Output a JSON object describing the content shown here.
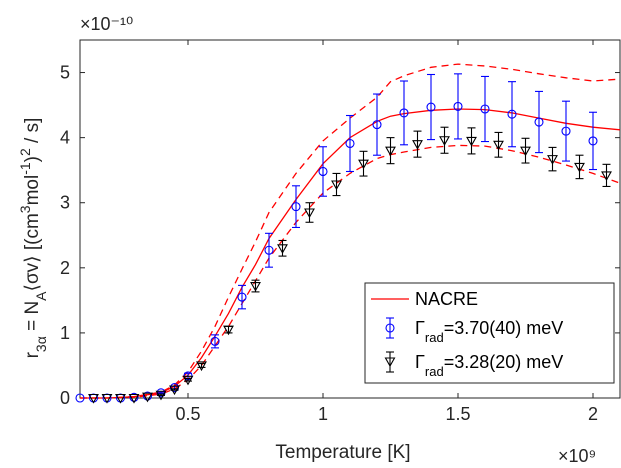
{
  "chart_data": {
    "type": "line",
    "xlabel": "Temperature [K]",
    "x_multiplier": "×10⁹",
    "y_multiplier": "×10⁻¹⁰",
    "xlim": [
      0.1,
      2.1
    ],
    "ylim": [
      0,
      5.5
    ],
    "x_ticks": [
      0.5,
      1,
      1.5,
      2
    ],
    "x_tick_labels": [
      "0.5",
      "1",
      "1.5",
      "2"
    ],
    "y_ticks": [
      0,
      1,
      2,
      3,
      4,
      5
    ],
    "y_tick_labels": [
      "0",
      "1",
      "2",
      "3",
      "4",
      "5"
    ],
    "grid": false,
    "legend_position": "bottom-right",
    "colors": {
      "nacre": "#ff0000",
      "series1": "#0000ff",
      "series2": "#000000",
      "axis": "#262626"
    },
    "series": [
      {
        "name": "NACRE",
        "style": "solid",
        "x": [
          0.1,
          0.2,
          0.3,
          0.4,
          0.45,
          0.5,
          0.55,
          0.6,
          0.65,
          0.7,
          0.75,
          0.8,
          0.9,
          1.0,
          1.1,
          1.2,
          1.25,
          1.3,
          1.4,
          1.5,
          1.6,
          1.7,
          1.8,
          1.9,
          2.0,
          2.1
        ],
        "y": [
          0.0,
          0.0,
          0.02,
          0.08,
          0.18,
          0.35,
          0.62,
          0.95,
          1.3,
          1.7,
          2.05,
          2.45,
          3.05,
          3.6,
          4.0,
          4.25,
          4.33,
          4.37,
          4.42,
          4.44,
          4.43,
          4.38,
          4.3,
          4.22,
          4.16,
          4.12
        ]
      },
      {
        "name": "NACRE upper",
        "style": "dashed",
        "x": [
          0.1,
          0.2,
          0.3,
          0.4,
          0.45,
          0.5,
          0.55,
          0.6,
          0.65,
          0.7,
          0.75,
          0.8,
          0.9,
          1.0,
          1.1,
          1.2,
          1.25,
          1.3,
          1.4,
          1.5,
          1.6,
          1.7,
          1.8,
          1.9,
          2.0,
          2.1
        ],
        "y": [
          0.0,
          0.0,
          0.02,
          0.09,
          0.2,
          0.4,
          0.72,
          1.1,
          1.55,
          1.98,
          2.4,
          2.85,
          3.45,
          3.95,
          4.3,
          4.62,
          4.86,
          4.95,
          5.08,
          5.13,
          5.1,
          5.05,
          4.98,
          4.92,
          4.87,
          4.9
        ]
      },
      {
        "name": "NACRE lower",
        "style": "dashed",
        "x": [
          0.1,
          0.2,
          0.3,
          0.4,
          0.45,
          0.5,
          0.55,
          0.6,
          0.65,
          0.7,
          0.75,
          0.8,
          0.9,
          1.0,
          1.1,
          1.2,
          1.25,
          1.3,
          1.4,
          1.5,
          1.6,
          1.7,
          1.8,
          1.9,
          2.0,
          2.1
        ],
        "y": [
          0.0,
          0.0,
          0.01,
          0.06,
          0.14,
          0.28,
          0.5,
          0.8,
          1.1,
          1.45,
          1.8,
          2.15,
          2.7,
          3.15,
          3.45,
          3.68,
          3.74,
          3.78,
          3.85,
          3.88,
          3.87,
          3.8,
          3.7,
          3.58,
          3.45,
          3.3
        ]
      },
      {
        "name": "Γrad=3.70(40) meV",
        "marker": "circle",
        "x": [
          0.1,
          0.15,
          0.2,
          0.25,
          0.3,
          0.35,
          0.4,
          0.45,
          0.5,
          0.6,
          0.7,
          0.8,
          0.9,
          1.0,
          1.1,
          1.2,
          1.3,
          1.4,
          1.5,
          1.6,
          1.7,
          1.8,
          1.9,
          2.0
        ],
        "y": [
          0.0,
          0.0,
          0.0,
          0.0,
          0.01,
          0.03,
          0.08,
          0.16,
          0.34,
          0.87,
          1.55,
          2.27,
          2.94,
          3.48,
          3.91,
          4.2,
          4.38,
          4.47,
          4.48,
          4.44,
          4.36,
          4.24,
          4.1,
          3.95
        ],
        "err": [
          0.0,
          0.0,
          0.0,
          0.0,
          0.0,
          0.0,
          0.01,
          0.02,
          0.04,
          0.1,
          0.18,
          0.26,
          0.32,
          0.38,
          0.43,
          0.47,
          0.49,
          0.5,
          0.5,
          0.5,
          0.5,
          0.47,
          0.46,
          0.44
        ]
      },
      {
        "name": "Γrad=3.28(20) meV",
        "marker": "triangle-down",
        "x": [
          0.15,
          0.2,
          0.25,
          0.3,
          0.35,
          0.4,
          0.45,
          0.5,
          0.55,
          0.65,
          0.75,
          0.85,
          0.95,
          1.05,
          1.15,
          1.25,
          1.35,
          1.45,
          1.55,
          1.65,
          1.75,
          1.85,
          1.95,
          2.05
        ],
        "y": [
          0.0,
          0.0,
          0.0,
          0.0,
          0.02,
          0.05,
          0.13,
          0.28,
          0.5,
          1.05,
          1.72,
          2.3,
          2.85,
          3.28,
          3.6,
          3.8,
          3.9,
          3.96,
          3.95,
          3.89,
          3.8,
          3.67,
          3.55,
          3.42
        ],
        "err": [
          0.0,
          0.0,
          0.0,
          0.0,
          0.0,
          0.01,
          0.01,
          0.02,
          0.03,
          0.05,
          0.09,
          0.12,
          0.15,
          0.17,
          0.19,
          0.2,
          0.2,
          0.2,
          0.2,
          0.19,
          0.19,
          0.18,
          0.18,
          0.17
        ]
      }
    ],
    "legend": [
      {
        "label": "NACRE",
        "symbol": "line"
      },
      {
        "label_main": "Γ",
        "label_sub": "rad",
        "label_rest": "=3.70(40) meV",
        "symbol": "circle"
      },
      {
        "label_main": "Γ",
        "label_sub": "rad",
        "label_rest": "=3.28(20) meV",
        "symbol": "triangle-down"
      }
    ]
  }
}
